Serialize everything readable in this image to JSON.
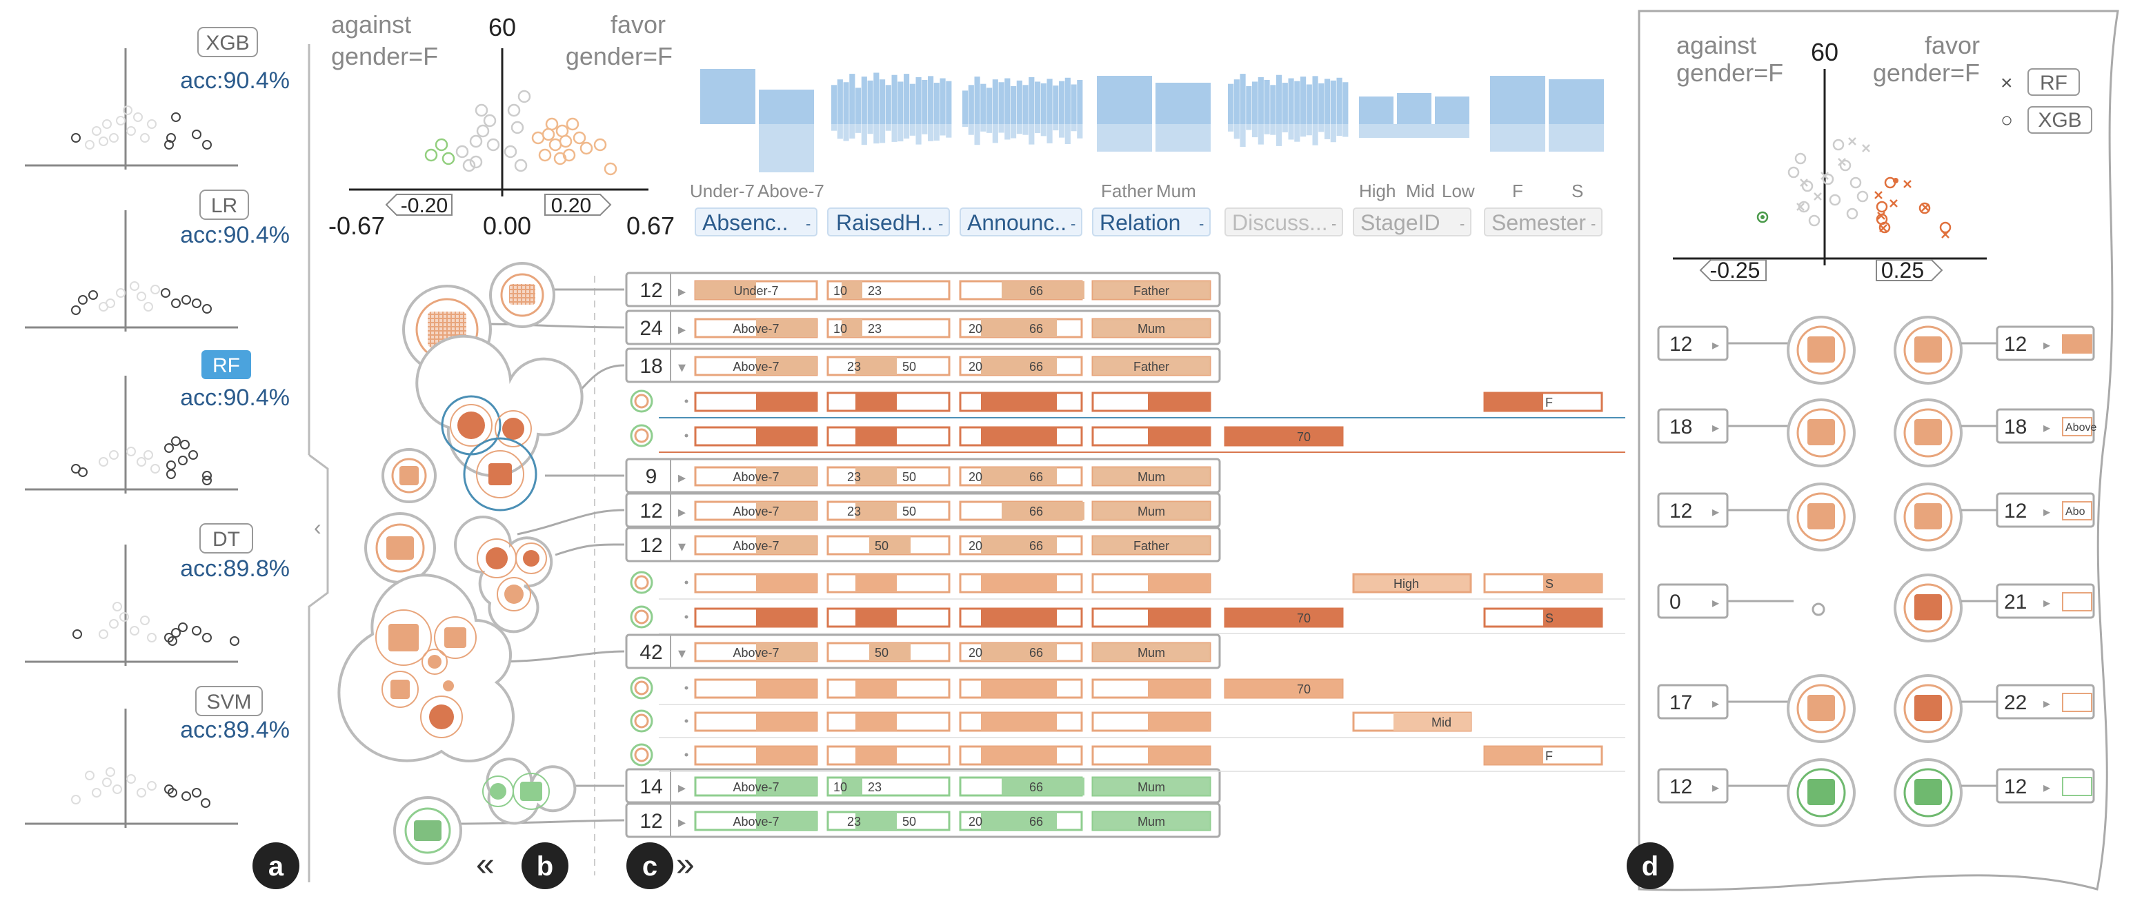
{
  "panel_a": {
    "models": [
      {
        "name": "XGB",
        "acc": "acc:90.4%",
        "selected": false
      },
      {
        "name": "LR",
        "acc": "acc:90.4%",
        "selected": false
      },
      {
        "name": "RF",
        "acc": "acc:90.4%",
        "selected": true
      },
      {
        "name": "DT",
        "acc": "acc:89.8%",
        "selected": false
      },
      {
        "name": "SVM",
        "acc": "acc:89.4%",
        "selected": false
      }
    ],
    "collapse_glyph": "‹"
  },
  "panel_b": {
    "against_line1": "against",
    "against_line2": "gender=F",
    "favor_line1": "favor",
    "favor_line2": "gender=F",
    "y_max": "60",
    "x_min": "-0.67",
    "x_mid": "0.00",
    "x_max": "0.67",
    "brush_left": "-0.20",
    "brush_right": "0.20"
  },
  "panel_c": {
    "attributes": [
      {
        "label": "Absenc..",
        "active": true,
        "categories": [
          "Under-7",
          "Above-7"
        ]
      },
      {
        "label": "RaisedH..",
        "active": true,
        "categories": []
      },
      {
        "label": "Announc..",
        "active": true,
        "categories": []
      },
      {
        "label": "Relation",
        "active": true,
        "categories": [
          "Father",
          "Mum"
        ]
      },
      {
        "label": "Discuss...",
        "active": false,
        "categories": []
      },
      {
        "label": "StageID",
        "active": false,
        "categories": [
          "High",
          "Mid",
          "Low"
        ]
      },
      {
        "label": "Semester",
        "active": false,
        "categories": [
          "F",
          "S"
        ]
      }
    ],
    "rows": [
      {
        "count": "12",
        "absence": "Under-7",
        "raised": [
          "10",
          "23"
        ],
        "announce": [
          "66"
        ],
        "relation": "Father"
      },
      {
        "count": "24",
        "absence": "Above-7",
        "raised": [
          "10",
          "23"
        ],
        "announce": [
          "20",
          "66"
        ],
        "relation": "Mum"
      },
      {
        "count": "18",
        "absence": "Above-7",
        "raised": [
          "23",
          "50"
        ],
        "announce": [
          "20",
          "66"
        ],
        "relation": "Father"
      },
      {
        "count": "9",
        "absence": "Above-7",
        "raised": [
          "23",
          "50"
        ],
        "announce": [
          "20",
          "66"
        ],
        "relation": "Mum"
      },
      {
        "count": "12",
        "absence": "Above-7",
        "raised": [
          "23",
          "50"
        ],
        "announce": [
          "66"
        ],
        "relation": "Mum"
      },
      {
        "count": "12",
        "absence": "Above-7",
        "raised": [
          "50"
        ],
        "announce": [
          "20",
          "66"
        ],
        "relation": "Father"
      },
      {
        "count": "42",
        "absence": "Above-7",
        "raised": [
          "50"
        ],
        "announce": [
          "20",
          "66"
        ],
        "relation": "Mum"
      },
      {
        "count": "14",
        "absence": "Above-7",
        "raised": [
          "10",
          "23"
        ],
        "announce": [
          "66"
        ],
        "relation": "Mum"
      },
      {
        "count": "12",
        "absence": "Above-7",
        "raised": [
          "23",
          "50"
        ],
        "announce": [
          "20",
          "66"
        ],
        "relation": "Mum"
      }
    ],
    "sub_labels": {
      "semester_f": "F",
      "semester_s": "S",
      "discuss_70": "70",
      "stage_high": "High",
      "stage_mid": "Mid"
    }
  },
  "panel_d": {
    "against_line1": "against",
    "against_line2": "gender=F",
    "favor_line1": "favor",
    "favor_line2": "gender=F",
    "y_max": "60",
    "x_left": "-0.25",
    "x_right": "0.25",
    "legend": [
      {
        "symbol": "×",
        "label": "RF"
      },
      {
        "symbol": "○",
        "label": "XGB"
      }
    ],
    "left_counts": [
      "12",
      "18",
      "12",
      "0",
      "17",
      "12"
    ],
    "right_counts": [
      "12",
      "18",
      "12",
      "21",
      "22",
      "12"
    ],
    "right_bar_labels": [
      "Above",
      "Abo"
    ]
  },
  "panel_labels": {
    "a": "a",
    "b": "b",
    "c": "c",
    "d": "d"
  },
  "colors": {
    "orange": "#e8a57c",
    "orange_dark": "#d9774e",
    "green": "#8fce8f",
    "blue_text": "#2b5b8c",
    "blue_sel": "#4ba3dd",
    "hist_blue": "#a9cbea",
    "grey": "#9a9a9a"
  }
}
